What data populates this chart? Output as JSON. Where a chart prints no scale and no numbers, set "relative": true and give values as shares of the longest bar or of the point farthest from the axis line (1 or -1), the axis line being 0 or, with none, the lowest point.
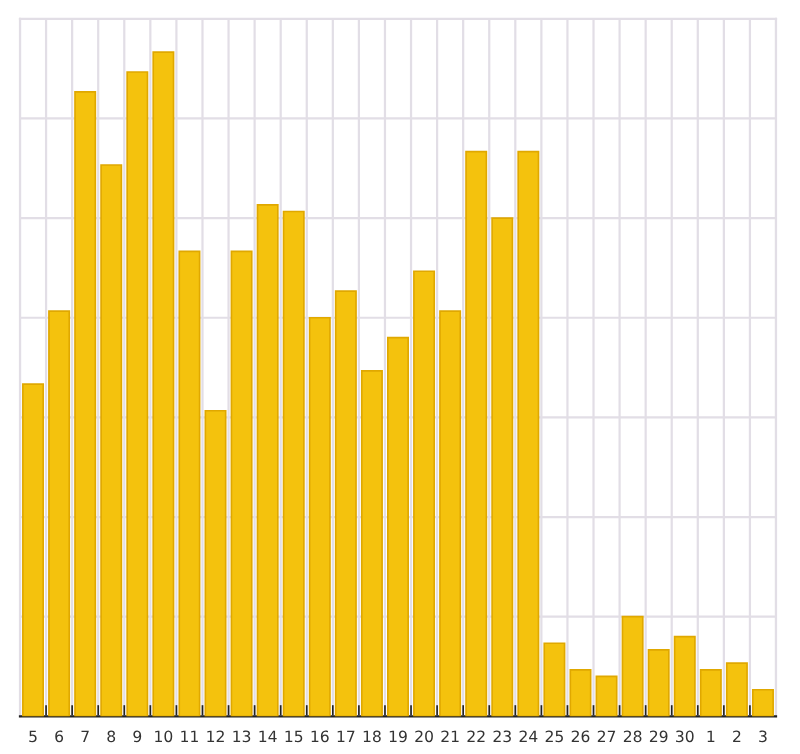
{
  "chart_data": {
    "type": "bar",
    "relative": true,
    "grid": true,
    "color": "#f4c20d",
    "categories": [
      "5",
      "6",
      "7",
      "8",
      "9",
      "10",
      "11",
      "12",
      "13",
      "14",
      "15",
      "16",
      "17",
      "18",
      "19",
      "20",
      "21",
      "22",
      "23",
      "24",
      "25",
      "26",
      "27",
      "28",
      "29",
      "30",
      "1",
      "2",
      "3"
    ],
    "values": [
      0.5,
      0.61,
      0.94,
      0.83,
      0.97,
      1.0,
      0.7,
      0.46,
      0.7,
      0.77,
      0.76,
      0.6,
      0.64,
      0.52,
      0.57,
      0.67,
      0.61,
      0.85,
      0.75,
      0.85,
      0.11,
      0.07,
      0.06,
      0.15,
      0.1,
      0.12,
      0.07,
      0.08,
      0.04
    ]
  }
}
